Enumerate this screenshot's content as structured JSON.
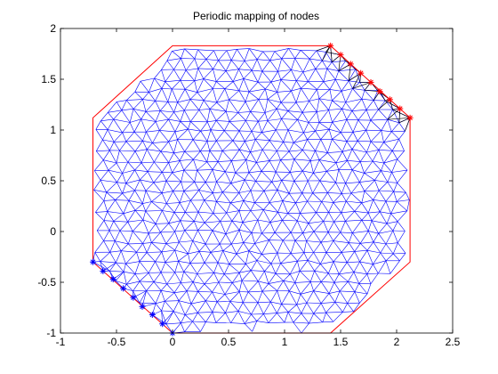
{
  "figure": {
    "title": "Periodic mapping of nodes"
  },
  "chart_data": {
    "type": "scatter",
    "title": "Periodic mapping of nodes",
    "xlabel": "",
    "ylabel": "",
    "xlim": [
      -1,
      2.5
    ],
    "ylim": [
      -1,
      2
    ],
    "x_ticks": [
      -1,
      -0.5,
      0,
      0.5,
      1,
      1.5,
      2,
      2.5
    ],
    "y_ticks": [
      -1,
      -0.5,
      0,
      0.5,
      1,
      1.5,
      2
    ],
    "x_tick_labels": [
      "-1",
      "-0.5",
      "0",
      "0.5",
      "1",
      "1.5",
      "2",
      "2.5"
    ],
    "y_tick_labels": [
      "-1",
      "-0.5",
      "0",
      "0.5",
      "1",
      "1.5",
      "2"
    ],
    "grid": false,
    "legend": "none",
    "boundary": {
      "color": "#ff0000",
      "vertices": [
        [
          0.0,
          1.83
        ],
        [
          1.41,
          1.83
        ],
        [
          2.12,
          1.12
        ],
        [
          2.12,
          -0.3
        ],
        [
          1.41,
          -1.0
        ],
        [
          0.0,
          -1.0
        ],
        [
          -0.71,
          -0.3
        ],
        [
          -0.71,
          1.12
        ]
      ]
    },
    "mesh": {
      "color": "#0000ff",
      "approx_spacing": 0.115
    },
    "series": [
      {
        "marker": "*",
        "color": "#ff0000",
        "points": [
          [
            1.41,
            1.83
          ],
          [
            1.5,
            1.74
          ],
          [
            1.59,
            1.65
          ],
          [
            1.68,
            1.56
          ],
          [
            1.77,
            1.47
          ],
          [
            1.85,
            1.38
          ],
          [
            1.94,
            1.3
          ],
          [
            2.03,
            1.21
          ],
          [
            2.12,
            1.12
          ]
        ]
      },
      {
        "marker": "*",
        "color": "#0000ff",
        "points": [
          [
            -0.71,
            -0.3
          ],
          [
            -0.62,
            -0.39
          ],
          [
            -0.53,
            -0.47
          ],
          [
            -0.44,
            -0.56
          ],
          [
            -0.35,
            -0.65
          ],
          [
            -0.27,
            -0.74
          ],
          [
            -0.18,
            -0.82
          ],
          [
            -0.09,
            -0.91
          ],
          [
            0.0,
            -1.0
          ]
        ]
      }
    ],
    "mapping_links": {
      "color": "#000000",
      "description": "each red node connected to neighbouring mesh nodes"
    }
  }
}
